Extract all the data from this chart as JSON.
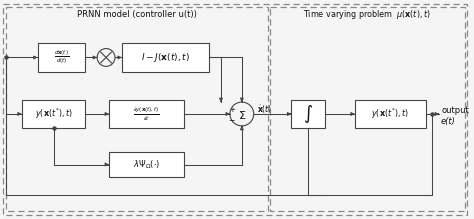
{
  "fig_width": 4.74,
  "fig_height": 2.19,
  "dpi": 100,
  "bg_color": "#f5f5f5",
  "box_edge": "#444444",
  "text_color": "#111111",
  "prnn_label": "PRNN model (controller u(t))",
  "tvp_label": "Time varying problem  $\\mu(\\mathbf{x}(t), t)$",
  "output_label": "output",
  "et_label": "e(t)",
  "box1_label": "$\\frac{d\\mathbf{x}(t)}{d(t)}$",
  "box2_label": "$I - J(\\mathbf{x}(t), t)$",
  "box3_label": "$y(\\mathbf{x}(t^{*}), t)$",
  "box4_label": "$\\frac{\\partial y(\\mathbf{x}(t),t)}{\\partial t}$",
  "box5_label": "$\\lambda\\Psi_{\\Omega}(\\cdot)$",
  "box6_label": "$\\int$",
  "box7_label": "$y(\\mathbf{x}(t^{*}), t)$",
  "xdot_label": "$\\dot{\\mathbf{x}}(t)$",
  "line_color": "#444444",
  "lw": 0.75
}
